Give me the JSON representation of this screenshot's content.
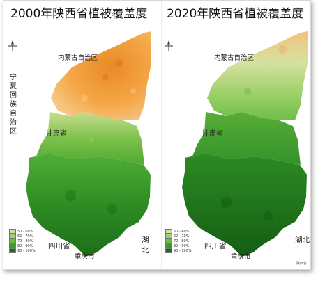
{
  "maps": [
    {
      "title": "2000年陕西省植被覆盖度",
      "year": "2000",
      "palette": {
        "north_color": "#f4a23c",
        "north_deep": "#e07a1a",
        "middle_color": "#68b33d",
        "south_color": "#2c8a23"
      }
    },
    {
      "title": "2020年陕西省植被覆盖度",
      "year": "2020",
      "palette": {
        "north_color": "#7fc55a",
        "north_deep": "#f0c27a",
        "middle_color": "#3e9b2a",
        "south_color": "#1f7a1c"
      }
    }
  ],
  "labels": {
    "inner_mongolia": "内蒙古自治区",
    "ningxia": "宁夏回族自治区",
    "gansu": "甘肃省",
    "sichuan": "四川省",
    "chongqing": "重庆市",
    "hubei": "湖北"
  },
  "legend": {
    "items": [
      {
        "label": "50 - 60%",
        "color": "#c9e4a0"
      },
      {
        "label": "60 - 70%",
        "color": "#9fd16f"
      },
      {
        "label": "70 - 80%",
        "color": "#6fb94a"
      },
      {
        "label": "80 - 90%",
        "color": "#3f9a2d"
      },
      {
        "label": "90 - 100%",
        "color": "#1a6e18"
      }
    ]
  },
  "footer": {
    "source": "陕西省"
  }
}
